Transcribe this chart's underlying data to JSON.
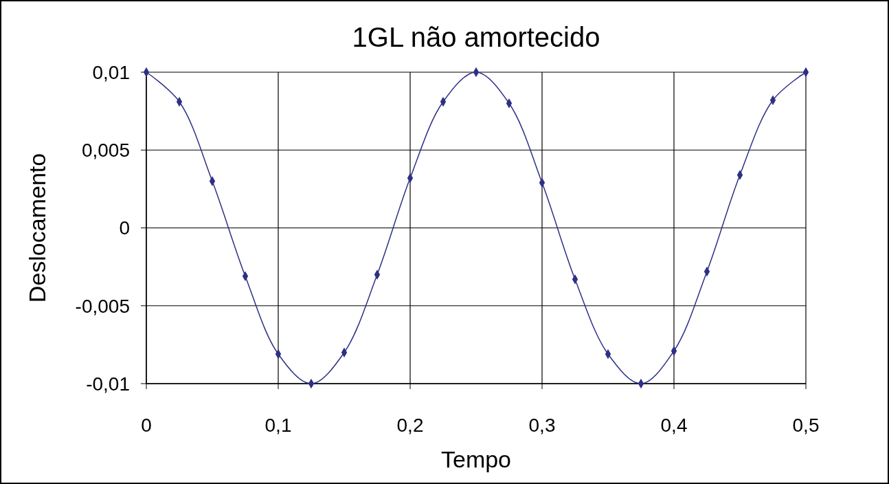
{
  "chart_data": {
    "type": "line",
    "title": "1GL não amortecido",
    "xlabel": "Tempo",
    "ylabel": "Deslocamento",
    "x": [
      0,
      0.025,
      0.05,
      0.075,
      0.1,
      0.125,
      0.15,
      0.175,
      0.2,
      0.225,
      0.25,
      0.275,
      0.3,
      0.325,
      0.35,
      0.375,
      0.4,
      0.425,
      0.45,
      0.475,
      0.5
    ],
    "series": [
      {
        "color": "#2e3085",
        "values": [
          0.01,
          0.0081,
          0.003,
          -0.0031,
          -0.0081,
          -0.01,
          -0.008,
          -0.003,
          0.0032,
          0.0081,
          0.01,
          0.008,
          0.0029,
          -0.0033,
          -0.0081,
          -0.01,
          -0.0079,
          -0.0028,
          0.0034,
          0.0082,
          0.01
        ]
      }
    ],
    "xlim": [
      0,
      0.5
    ],
    "xticks": [
      0,
      {
        "value": 0.1,
        "label": "0,1"
      },
      {
        "value": 0.2,
        "label": "0,2"
      },
      {
        "value": 0.3,
        "label": "0,3"
      },
      {
        "value": 0.4,
        "label": "0,4"
      },
      {
        "value": 0.5,
        "label": "0,5"
      }
    ],
    "ylim": [
      -0.01,
      0.01
    ],
    "yticks": [
      {
        "value": -0.01,
        "label": "-0,01"
      },
      {
        "value": -0.005,
        "label": "-0,005"
      },
      0,
      {
        "value": 0.005,
        "label": "0,005"
      },
      {
        "value": 0.01,
        "label": "0,01"
      }
    ],
    "grid": true,
    "marker": "diamond",
    "line_style": "solid"
  }
}
